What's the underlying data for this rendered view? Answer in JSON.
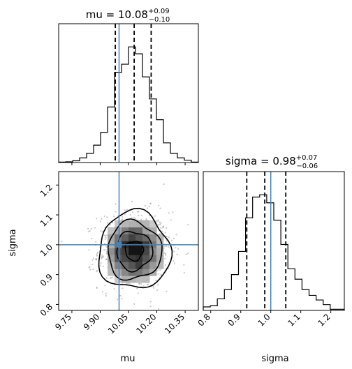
{
  "chart_data": {
    "type": "corner",
    "truth": {
      "mu": 10.0,
      "sigma": 1.0
    },
    "truth_color": "#4682b4",
    "panels": [
      {
        "id": "mu-hist",
        "type": "histogram",
        "title": {
          "prefix": "mu = ",
          "value": "10.08",
          "plus": "+0.09",
          "minus": "−0.10"
        },
        "xlim": [
          9.68,
          10.42
        ],
        "ylim": [
          0,
          1.2
        ],
        "quantiles": [
          9.98,
          10.08,
          10.17
        ],
        "bin_edges": [
          9.68,
          9.717,
          9.754,
          9.791,
          9.828,
          9.865,
          9.902,
          9.939,
          9.976,
          10.013,
          10.05,
          10.087,
          10.124,
          10.161,
          10.198,
          10.235,
          10.272,
          10.309,
          10.346,
          10.383,
          10.42
        ],
        "counts": [
          0.004,
          0.006,
          0.015,
          0.04,
          0.08,
          0.15,
          0.26,
          0.48,
          0.78,
          0.85,
          1.0,
          0.94,
          0.74,
          0.55,
          0.37,
          0.17,
          0.08,
          0.04,
          0.02,
          0.004
        ]
      },
      {
        "id": "joint",
        "type": "2d-density",
        "xlim": [
          9.68,
          10.42
        ],
        "ylim": [
          0.78,
          1.245
        ],
        "xticks": [
          "9.75",
          "9.90",
          "10.05",
          "10.20",
          "10.35"
        ],
        "xtick_values": [
          9.75,
          9.9,
          10.05,
          10.2,
          10.35
        ],
        "yticks": [
          "0.8",
          "0.9",
          "1.0",
          "1.1",
          "1.2"
        ],
        "ytick_values": [
          0.8,
          0.9,
          1.0,
          1.1,
          1.2
        ],
        "xlabel": "mu",
        "ylabel": "sigma",
        "center": [
          10.08,
          0.98
        ],
        "spread": [
          0.095,
          0.065
        ]
      },
      {
        "id": "sigma-hist",
        "type": "histogram",
        "title": {
          "prefix": "sigma = ",
          "value": "0.98",
          "plus": "+0.07",
          "minus": "−0.06"
        },
        "xlim": [
          0.775,
          1.245
        ],
        "ylim": [
          0,
          1.2
        ],
        "quantiles": [
          0.92,
          0.98,
          1.05
        ],
        "xticks": [
          "0.8",
          "0.9",
          "1.0",
          "1.1",
          "1.2"
        ],
        "xtick_values": [
          0.8,
          0.9,
          1.0,
          1.1,
          1.2
        ],
        "xlabel": "sigma",
        "bin_edges": [
          0.775,
          0.7985,
          0.822,
          0.8455,
          0.869,
          0.8925,
          0.916,
          0.9395,
          0.963,
          0.9865,
          1.01,
          1.0335,
          1.057,
          1.0805,
          1.104,
          1.1275,
          1.151,
          1.1745,
          1.198,
          1.2215,
          1.245
        ],
        "counts": [
          0.03,
          0.04,
          0.1,
          0.18,
          0.31,
          0.51,
          0.8,
          0.98,
          1.0,
          0.93,
          0.78,
          0.57,
          0.36,
          0.27,
          0.18,
          0.13,
          0.09,
          0.05,
          0.01,
          0.01
        ]
      }
    ]
  },
  "labels": {
    "mu_title_prefix": "mu = ",
    "mu_title_value": "10.08",
    "mu_title_plus": "+0.09",
    "mu_title_minus": "−0.10",
    "sigma_title_prefix": "sigma = ",
    "sigma_title_value": "0.98",
    "sigma_title_plus": "+0.07",
    "sigma_title_minus": "−0.06",
    "xlabel_mu": "mu",
    "xlabel_sigma": "sigma",
    "ylabel_sigma": "sigma"
  }
}
